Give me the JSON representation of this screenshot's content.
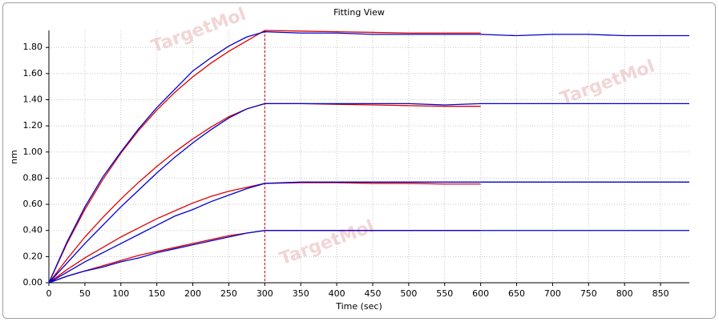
{
  "chart_data": {
    "type": "line",
    "title": "Fitting View",
    "xlabel": "Time (sec)",
    "ylabel": "nm",
    "watermark": "TargetMol",
    "vline": 300,
    "vline_color": "#c00000",
    "grid": true,
    "xlim": [
      0,
      890
    ],
    "ylim": [
      0,
      1.93
    ],
    "xticks": [
      0,
      50,
      100,
      150,
      200,
      250,
      300,
      350,
      400,
      450,
      500,
      550,
      600,
      650,
      700,
      750,
      800,
      850
    ],
    "yticks": [
      {
        "value": 0,
        "label": "0.00"
      },
      {
        "value": 0.2,
        "label": "0.20"
      },
      {
        "value": 0.4,
        "label": "0.40"
      },
      {
        "value": 0.6,
        "label": "0.60"
      },
      {
        "value": 0.8,
        "label": "0.80"
      },
      {
        "value": 1.0,
        "label": "1.00"
      },
      {
        "value": 1.2,
        "label": "1.20"
      },
      {
        "value": 1.4,
        "label": "1.40"
      },
      {
        "value": 1.6,
        "label": "1.60"
      },
      {
        "value": 1.8,
        "label": "1.80"
      }
    ],
    "series": [
      {
        "color": "#e00000",
        "x": [
          0,
          25,
          50,
          75,
          100,
          125,
          150,
          175,
          200,
          225,
          250,
          275,
          300,
          350,
          400,
          450,
          500,
          550,
          600
        ],
        "values": [
          0,
          0.299,
          0.56,
          0.79,
          0.991,
          1.167,
          1.321,
          1.457,
          1.575,
          1.679,
          1.77,
          1.85,
          1.93,
          1.925,
          1.92,
          1.915,
          1.91,
          1.91,
          1.91
        ]
      },
      {
        "color": "#e00000",
        "x": [
          0,
          25,
          50,
          75,
          100,
          125,
          150,
          175,
          200,
          225,
          250,
          275,
          300,
          350,
          400,
          450,
          500,
          550,
          600
        ],
        "values": [
          0,
          0.18,
          0.35,
          0.5,
          0.64,
          0.77,
          0.89,
          1.0,
          1.1,
          1.19,
          1.27,
          1.33,
          1.37,
          1.37,
          1.365,
          1.36,
          1.355,
          1.35,
          1.35
        ]
      },
      {
        "color": "#e00000",
        "x": [
          0,
          25,
          50,
          75,
          100,
          125,
          150,
          175,
          200,
          225,
          250,
          275,
          300,
          350,
          400,
          450,
          500,
          550,
          600
        ],
        "values": [
          0,
          0.1,
          0.19,
          0.27,
          0.35,
          0.42,
          0.49,
          0.55,
          0.61,
          0.66,
          0.7,
          0.73,
          0.76,
          0.765,
          0.765,
          0.76,
          0.76,
          0.755,
          0.755
        ]
      },
      {
        "color": "#e00000",
        "x": [
          0,
          25,
          50,
          75,
          100,
          125,
          150,
          175,
          200,
          225,
          250,
          275,
          300,
          350,
          400,
          450,
          500,
          550,
          600
        ],
        "values": [
          0,
          0.05,
          0.09,
          0.13,
          0.17,
          0.21,
          0.24,
          0.27,
          0.3,
          0.33,
          0.36,
          0.38,
          0.4,
          0.4,
          0.4,
          0.4,
          0.4,
          0.4,
          0.4
        ]
      },
      {
        "color": "#0000d0",
        "x": [
          0,
          25,
          50,
          75,
          100,
          125,
          150,
          175,
          200,
          225,
          250,
          275,
          300,
          350,
          400,
          450,
          500,
          550,
          600,
          650,
          700,
          750,
          800,
          850,
          890
        ],
        "values": [
          0,
          0.31,
          0.58,
          0.81,
          1.0,
          1.18,
          1.34,
          1.48,
          1.62,
          1.72,
          1.81,
          1.88,
          1.92,
          1.91,
          1.91,
          1.9,
          1.9,
          1.9,
          1.9,
          1.89,
          1.9,
          1.9,
          1.89,
          1.89,
          1.89
        ]
      },
      {
        "color": "#0000d0",
        "x": [
          0,
          25,
          50,
          75,
          100,
          125,
          150,
          175,
          200,
          225,
          250,
          275,
          300,
          350,
          400,
          450,
          500,
          550,
          600,
          650,
          700,
          750,
          800,
          850,
          890
        ],
        "values": [
          0,
          0.15,
          0.3,
          0.44,
          0.58,
          0.71,
          0.84,
          0.96,
          1.07,
          1.17,
          1.26,
          1.33,
          1.37,
          1.37,
          1.37,
          1.37,
          1.37,
          1.36,
          1.37,
          1.37,
          1.37,
          1.37,
          1.37,
          1.37,
          1.37
        ]
      },
      {
        "color": "#0000d0",
        "x": [
          0,
          25,
          50,
          75,
          100,
          125,
          150,
          175,
          200,
          225,
          250,
          275,
          300,
          350,
          400,
          450,
          500,
          550,
          600,
          650,
          700,
          750,
          800,
          850,
          890
        ],
        "values": [
          0,
          0.08,
          0.16,
          0.23,
          0.3,
          0.37,
          0.44,
          0.51,
          0.56,
          0.62,
          0.67,
          0.72,
          0.76,
          0.77,
          0.77,
          0.77,
          0.77,
          0.77,
          0.77,
          0.77,
          0.77,
          0.77,
          0.77,
          0.77,
          0.77
        ]
      },
      {
        "color": "#0000d0",
        "x": [
          0,
          25,
          50,
          75,
          100,
          125,
          150,
          175,
          200,
          225,
          250,
          275,
          300,
          350,
          400,
          450,
          500,
          550,
          600,
          650,
          700,
          750,
          800,
          850,
          890
        ],
        "values": [
          0,
          0.05,
          0.09,
          0.12,
          0.16,
          0.19,
          0.23,
          0.26,
          0.29,
          0.32,
          0.35,
          0.38,
          0.4,
          0.4,
          0.4,
          0.4,
          0.4,
          0.4,
          0.4,
          0.4,
          0.4,
          0.4,
          0.4,
          0.4,
          0.4
        ]
      }
    ]
  }
}
